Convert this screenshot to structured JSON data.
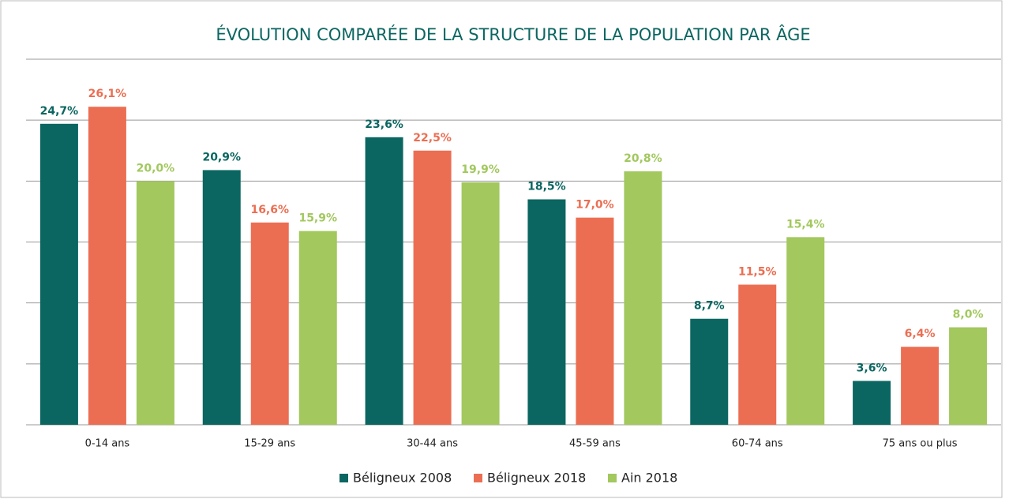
{
  "chart_data": {
    "type": "bar",
    "title": "ÉVOLUTION COMPARÉE DE  LA STRUCTURE DE LA POPULATION PAR ÂGE",
    "categories": [
      "0-14 ans",
      "15-29 ans",
      "30-44 ans",
      "45-59 ans",
      "60-74 ans",
      "75 ans ou plus"
    ],
    "series": [
      {
        "name": "Béligneux 2008",
        "color": "#0b6661",
        "values": [
          24.7,
          20.9,
          23.6,
          18.5,
          8.7,
          3.6
        ],
        "value_labels": [
          "24,7%",
          "20,9%",
          "23,6%",
          "18,5%",
          "8,7%",
          "3,6%"
        ]
      },
      {
        "name": "Béligneux 2018",
        "color": "#ec6e52",
        "values": [
          26.1,
          16.6,
          22.5,
          17.0,
          11.5,
          6.4
        ],
        "value_labels": [
          "26,1%",
          "16,6%",
          "22,5%",
          "17,0%",
          "11,5%",
          "6,4%"
        ]
      },
      {
        "name": "Ain 2018",
        "color": "#a2c85e",
        "values": [
          20.0,
          15.9,
          19.9,
          20.8,
          15.4,
          8.0
        ],
        "value_labels": [
          "20,0%",
          "15,9%",
          "19,9%",
          "20,8%",
          "15,4%",
          "8,0%"
        ]
      }
    ],
    "ylim": [
      0,
      30
    ],
    "yticks": [
      0,
      5,
      10,
      15,
      20,
      25,
      30
    ],
    "grid": true
  }
}
